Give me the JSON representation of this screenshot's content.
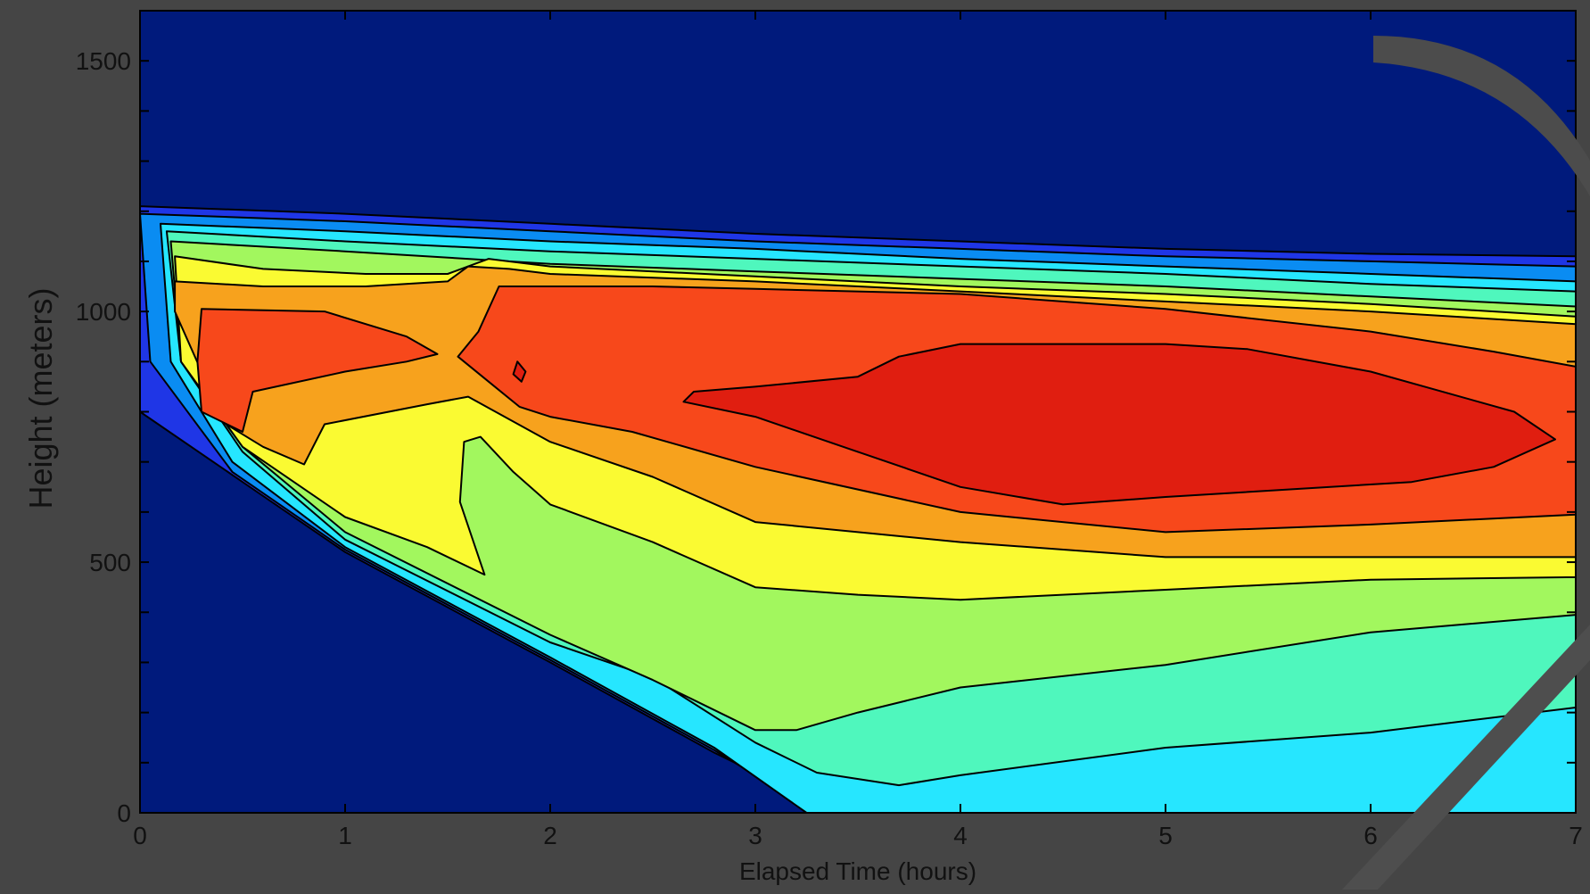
{
  "chart_data": {
    "type": "filled-contour",
    "title": "",
    "xlabel": "Elapsed Time (hours)",
    "ylabel": "Height (meters)",
    "xlim": [
      0,
      7
    ],
    "ylim": [
      0,
      1600
    ],
    "x_ticks": [
      0,
      1,
      2,
      3,
      4,
      5,
      6,
      7
    ],
    "x_tick_labels": [
      "0",
      "1",
      "2",
      "3",
      "4",
      "5",
      "6",
      "7"
    ],
    "y_ticks": [
      0,
      500,
      1000,
      1500
    ],
    "y_tick_labels": [
      "0",
      "500",
      "1000",
      "1500"
    ],
    "y_minor_ticks": [
      100,
      200,
      300,
      400,
      600,
      700,
      800,
      900,
      1100,
      1200,
      1300,
      1400
    ],
    "background_color": "#001a7c",
    "contour_line_color": "#000000",
    "levels": [
      {
        "level": 1,
        "color": "#1f36e6",
        "polygon": [
          [
            0,
            1210
          ],
          [
            1.0,
            1195
          ],
          [
            2.0,
            1175
          ],
          [
            3.0,
            1155
          ],
          [
            4.0,
            1140
          ],
          [
            5.0,
            1125
          ],
          [
            6.0,
            1115
          ],
          [
            7.0,
            1110
          ],
          [
            7.0,
            0
          ],
          [
            3.4,
            0
          ],
          [
            2.8,
            120
          ],
          [
            2.0,
            300
          ],
          [
            1.0,
            520
          ],
          [
            0.5,
            660
          ],
          [
            0,
            800
          ]
        ]
      },
      {
        "level": 2,
        "color": "#0a8cf2",
        "polygon": [
          [
            0,
            1195
          ],
          [
            1.0,
            1180
          ],
          [
            2.0,
            1160
          ],
          [
            3.0,
            1140
          ],
          [
            4.0,
            1125
          ],
          [
            5.0,
            1110
          ],
          [
            6.0,
            1100
          ],
          [
            7.0,
            1090
          ],
          [
            7.0,
            0
          ],
          [
            3.3,
            0
          ],
          [
            2.8,
            125
          ],
          [
            2.0,
            305
          ],
          [
            1.0,
            525
          ],
          [
            0.45,
            680
          ],
          [
            0.05,
            900
          ]
        ]
      },
      {
        "level": 3,
        "color": "#26e6ff",
        "polygon": [
          [
            0.1,
            1175
          ],
          [
            1.0,
            1160
          ],
          [
            2.0,
            1140
          ],
          [
            3.0,
            1125
          ],
          [
            4.0,
            1105
          ],
          [
            5.0,
            1090
          ],
          [
            6.0,
            1075
          ],
          [
            7.0,
            1060
          ],
          [
            7.0,
            0
          ],
          [
            3.25,
            0
          ],
          [
            2.8,
            130
          ],
          [
            2.0,
            310
          ],
          [
            1.0,
            530
          ],
          [
            0.45,
            700
          ],
          [
            0.15,
            900
          ]
        ]
      },
      {
        "level": 4,
        "color": "#4ff7bd",
        "polygon": [
          [
            0.13,
            1160
          ],
          [
            1.0,
            1140
          ],
          [
            2.0,
            1120
          ],
          [
            3.0,
            1105
          ],
          [
            4.0,
            1090
          ],
          [
            5.0,
            1075
          ],
          [
            6.0,
            1055
          ],
          [
            7.0,
            1040
          ],
          [
            7.0,
            210
          ],
          [
            6.0,
            160
          ],
          [
            5.0,
            130
          ],
          [
            4.0,
            75
          ],
          [
            3.7,
            55
          ],
          [
            3.3,
            80
          ],
          [
            3.0,
            140
          ],
          [
            2.5,
            270
          ],
          [
            2.0,
            340
          ],
          [
            1.0,
            545
          ],
          [
            0.5,
            720
          ],
          [
            0.2,
            900
          ]
        ]
      },
      {
        "level": 5,
        "color": "#a2f75e",
        "polygon": [
          [
            0.15,
            1140
          ],
          [
            1.0,
            1120
          ],
          [
            2.0,
            1095
          ],
          [
            3.0,
            1080
          ],
          [
            4.0,
            1065
          ],
          [
            5.0,
            1050
          ],
          [
            6.0,
            1030
          ],
          [
            7.0,
            1010
          ],
          [
            7.0,
            395
          ],
          [
            6.0,
            360
          ],
          [
            5.0,
            295
          ],
          [
            4.0,
            250
          ],
          [
            3.5,
            200
          ],
          [
            3.2,
            165
          ],
          [
            3.0,
            165
          ],
          [
            2.5,
            265
          ],
          [
            2.0,
            355
          ],
          [
            1.0,
            560
          ],
          [
            0.5,
            730
          ],
          [
            0.2,
            900
          ]
        ]
      },
      {
        "level": 6,
        "color": "#fafa32",
        "polygon": [
          [
            0.17,
            1110
          ],
          [
            0.6,
            1085
          ],
          [
            1.1,
            1075
          ],
          [
            1.5,
            1075
          ],
          [
            1.7,
            1105
          ],
          [
            2.0,
            1090
          ],
          [
            3.0,
            1070
          ],
          [
            4.0,
            1050
          ],
          [
            5.0,
            1035
          ],
          [
            6.0,
            1015
          ],
          [
            7.0,
            990
          ],
          [
            7.0,
            470
          ],
          [
            6.0,
            465
          ],
          [
            5.0,
            445
          ],
          [
            4.0,
            425
          ],
          [
            3.5,
            435
          ],
          [
            3.0,
            450
          ],
          [
            2.5,
            540
          ],
          [
            2.0,
            615
          ],
          [
            1.82,
            680
          ],
          [
            1.66,
            750
          ],
          [
            1.58,
            740
          ],
          [
            1.56,
            620
          ],
          [
            1.68,
            475
          ],
          [
            1.4,
            530
          ],
          [
            1.0,
            590
          ],
          [
            0.5,
            730
          ],
          [
            0.2,
            900
          ]
        ]
      },
      {
        "level": 7,
        "color": "#f7a21d",
        "polygon": [
          [
            0.17,
            1060
          ],
          [
            0.6,
            1050
          ],
          [
            1.1,
            1050
          ],
          [
            1.5,
            1060
          ],
          [
            1.6,
            1090
          ],
          [
            1.8,
            1085
          ],
          [
            2.0,
            1075
          ],
          [
            3.0,
            1060
          ],
          [
            4.0,
            1040
          ],
          [
            5.0,
            1020
          ],
          [
            6.0,
            1000
          ],
          [
            7.0,
            975
          ],
          [
            7.0,
            510
          ],
          [
            6.0,
            510
          ],
          [
            5.0,
            510
          ],
          [
            4.0,
            540
          ],
          [
            3.0,
            580
          ],
          [
            2.5,
            670
          ],
          [
            2.0,
            740
          ],
          [
            1.6,
            830
          ],
          [
            1.4,
            815
          ],
          [
            0.9,
            775
          ],
          [
            0.8,
            695
          ],
          [
            0.6,
            730
          ],
          [
            0.4,
            780
          ],
          [
            0.3,
            880
          ],
          [
            0.17,
            1000
          ]
        ]
      },
      {
        "level": 8,
        "color": "#f7481b",
        "polygon": [
          [
            0.3,
            1005
          ],
          [
            0.9,
            1000
          ],
          [
            1.3,
            950
          ],
          [
            1.45,
            915
          ],
          [
            1.3,
            900
          ],
          [
            1.0,
            880
          ],
          [
            0.55,
            840
          ],
          [
            0.5,
            760
          ],
          [
            0.3,
            800
          ],
          [
            0.28,
            900
          ]
        ]
      },
      {
        "level": 8,
        "color": "#f7481b",
        "polygon": [
          [
            1.75,
            1050
          ],
          [
            2.5,
            1050
          ],
          [
            3.0,
            1045
          ],
          [
            4.0,
            1035
          ],
          [
            5.0,
            1005
          ],
          [
            6.0,
            960
          ],
          [
            6.6,
            920
          ],
          [
            7.0,
            890
          ],
          [
            7.0,
            595
          ],
          [
            6.0,
            575
          ],
          [
            5.0,
            560
          ],
          [
            4.0,
            600
          ],
          [
            3.0,
            690
          ],
          [
            2.4,
            760
          ],
          [
            2.0,
            790
          ],
          [
            1.85,
            810
          ],
          [
            1.7,
            860
          ],
          [
            1.55,
            910
          ],
          [
            1.65,
            960
          ]
        ]
      },
      {
        "level": 9,
        "color": "#e01e10",
        "polygon": [
          [
            2.7,
            840
          ],
          [
            3.0,
            850
          ],
          [
            3.5,
            870
          ],
          [
            3.7,
            910
          ],
          [
            4.0,
            935
          ],
          [
            5.0,
            935
          ],
          [
            5.4,
            925
          ],
          [
            6.0,
            880
          ],
          [
            6.7,
            800
          ],
          [
            6.9,
            745
          ],
          [
            6.6,
            690
          ],
          [
            6.2,
            660
          ],
          [
            5.0,
            630
          ],
          [
            4.5,
            615
          ],
          [
            4.0,
            650
          ],
          [
            3.5,
            720
          ],
          [
            3.0,
            790
          ],
          [
            2.65,
            820
          ]
        ]
      },
      {
        "level": 9,
        "color": "#e01e10",
        "polygon": [
          [
            1.84,
            900
          ],
          [
            1.88,
            880
          ],
          [
            1.86,
            860
          ],
          [
            1.82,
            875
          ]
        ]
      }
    ]
  }
}
